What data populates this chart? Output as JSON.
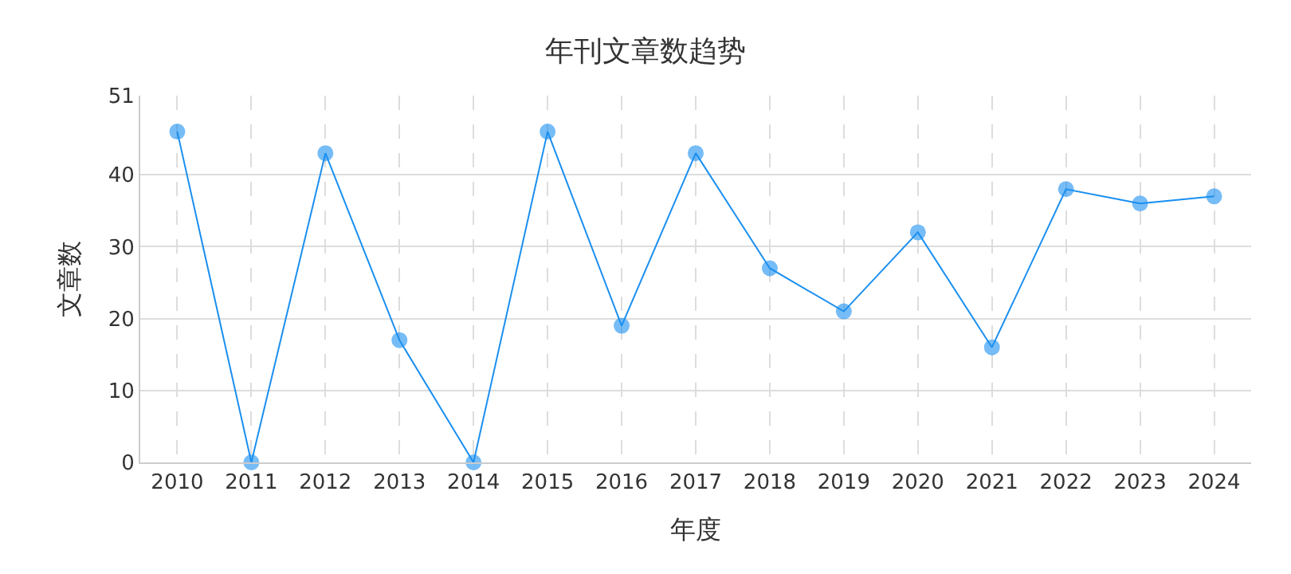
{
  "chart_data": {
    "type": "line",
    "title": "年刊文章数趋势",
    "xlabel": "年度",
    "ylabel": "文章数",
    "categories": [
      "2010",
      "2011",
      "2012",
      "2013",
      "2014",
      "2015",
      "2016",
      "2017",
      "2018",
      "2019",
      "2020",
      "2021",
      "2022",
      "2023",
      "2024"
    ],
    "series": [
      {
        "color": "#1a8ff0",
        "values": [
          46,
          0,
          43,
          17,
          0,
          46,
          19,
          43,
          27,
          21,
          32,
          16,
          38,
          36,
          37
        ]
      }
    ],
    "ylim": [
      0,
      51
    ],
    "yticks": [
      0,
      10,
      20,
      30,
      40,
      51
    ],
    "grid": true,
    "marker": "circle",
    "line_style": "solid"
  }
}
